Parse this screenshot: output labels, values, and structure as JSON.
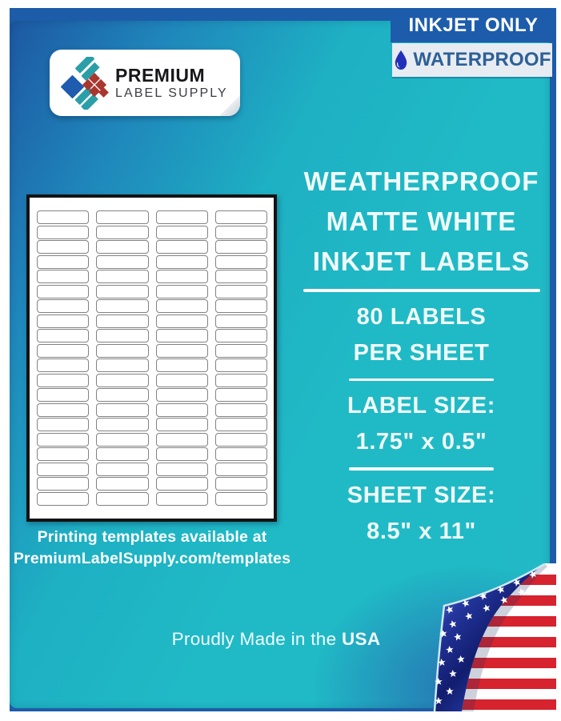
{
  "badges": {
    "inkjet_only_label": "INKJET ONLY",
    "waterproof_label": "WATERPROOF"
  },
  "logo": {
    "name_line1": "PREMIUM",
    "name_line2": "LABEL SUPPLY"
  },
  "headline": {
    "line1": "WEATHERPROOF",
    "line2": "MATTE WHITE",
    "line3": "INKJET LABELS"
  },
  "specs": {
    "count_line1": "80 LABELS",
    "count_line2": "PER SHEET",
    "label_size_title": "LABEL SIZE:",
    "label_size_value": "1.75\" x 0.5\"",
    "sheet_size_title": "SHEET SIZE:",
    "sheet_size_value": "8.5\" x 11\""
  },
  "sheet": {
    "columns": 4,
    "rows": 20,
    "total_labels": 80
  },
  "template_note": {
    "line1": "Printing templates available at",
    "line2": "PremiumLabelSupply.com/templates"
  },
  "footer": {
    "made_in_prefix": "Proudly Made in the",
    "made_in_country": "USA"
  },
  "icons": {
    "droplet": "water-droplet-icon",
    "flag_corner": "usa-flag-page-curl-icon",
    "logo_mark": "diamond-mosaic-logo-icon"
  },
  "colors": {
    "teal": "#1FB9C5",
    "dark_blue": "#1C5CA8",
    "badge_light_bg": "#E7EBF2",
    "badge_text_blue": "#2D6096",
    "droplet_blue": "#2230B8",
    "flag_red": "#D6232E",
    "flag_navy": "#1A2A8C",
    "text_light": "#EFFBF8"
  }
}
